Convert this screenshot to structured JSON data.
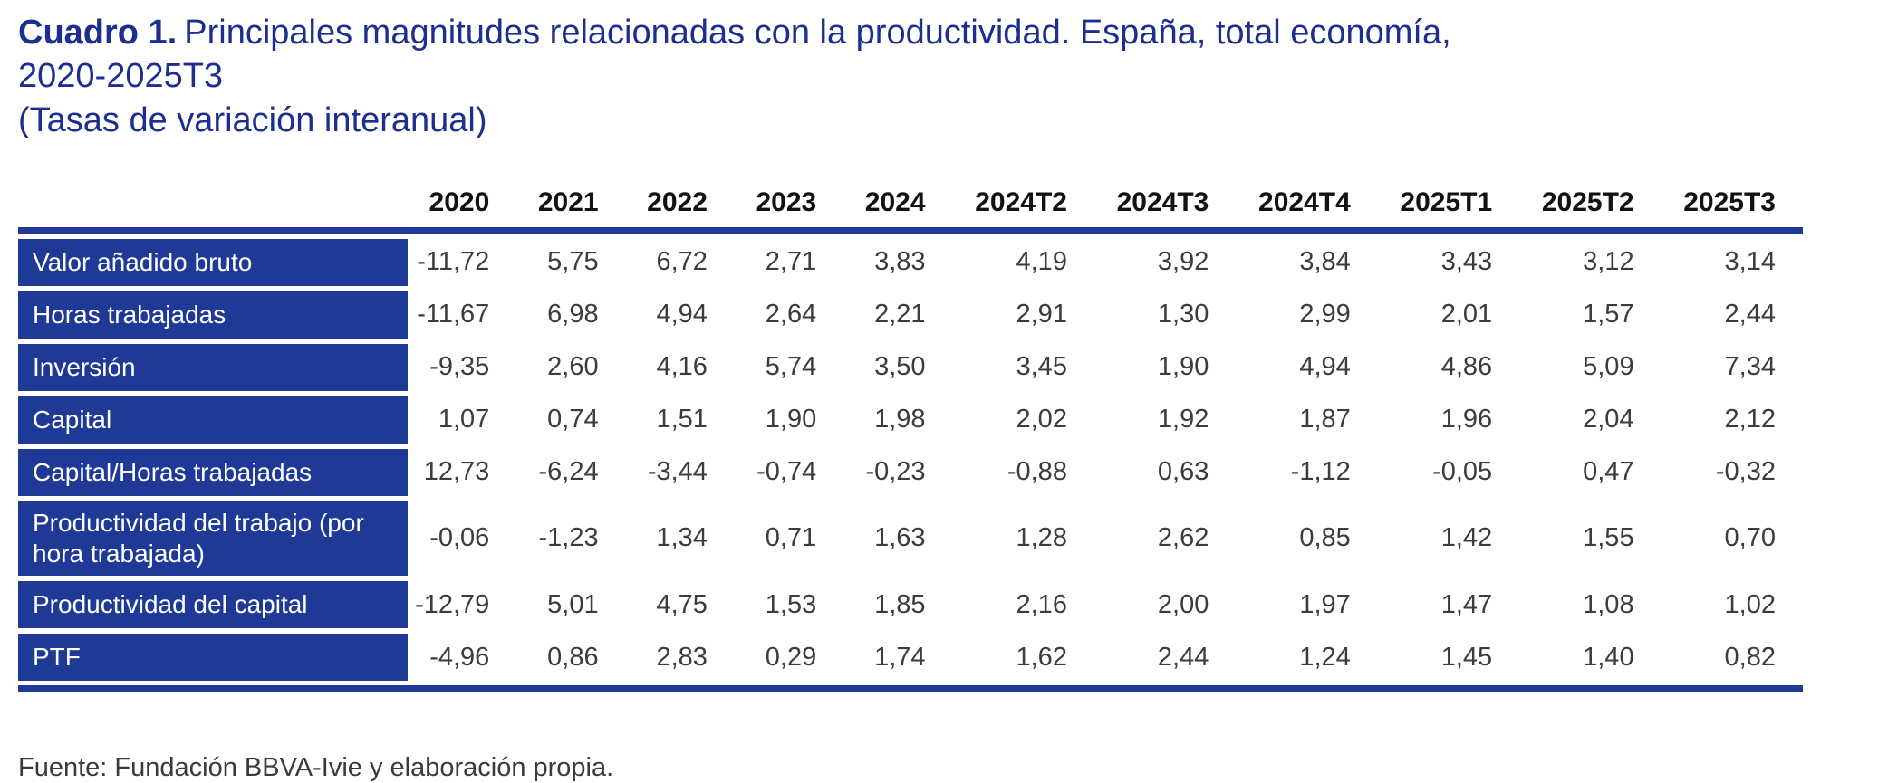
{
  "title": {
    "label": "Cuadro 1.",
    "text_line1": "Principales magnitudes relacionadas con la productividad. España, total economía, 2020-2025T3",
    "text_line2": "(Tasas de variación interanual)"
  },
  "chart_data": {
    "type": "table",
    "title": "Cuadro 1. Principales magnitudes relacionadas con la productividad. España, total economía, 2020-2025T3 (Tasas de variación interanual)",
    "columns": [
      "2020",
      "2021",
      "2022",
      "2023",
      "2024",
      "2024T2",
      "2024T3",
      "2024T4",
      "2025T1",
      "2025T2",
      "2025T3"
    ],
    "rows": [
      {
        "label": "Valor añadido bruto",
        "values": [
          "-11,72",
          "5,75",
          "6,72",
          "2,71",
          "3,83",
          "4,19",
          "3,92",
          "3,84",
          "3,43",
          "3,12",
          "3,14"
        ]
      },
      {
        "label": "Horas trabajadas",
        "values": [
          "-11,67",
          "6,98",
          "4,94",
          "2,64",
          "2,21",
          "2,91",
          "1,30",
          "2,99",
          "2,01",
          "1,57",
          "2,44"
        ]
      },
      {
        "label": "Inversión",
        "values": [
          "-9,35",
          "2,60",
          "4,16",
          "5,74",
          "3,50",
          "3,45",
          "1,90",
          "4,94",
          "4,86",
          "5,09",
          "7,34"
        ]
      },
      {
        "label": "Capital",
        "values": [
          "1,07",
          "0,74",
          "1,51",
          "1,90",
          "1,98",
          "2,02",
          "1,92",
          "1,87",
          "1,96",
          "2,04",
          "2,12"
        ]
      },
      {
        "label": "Capital/Horas trabajadas",
        "values": [
          "12,73",
          "-6,24",
          "-3,44",
          "-0,74",
          "-0,23",
          "-0,88",
          "0,63",
          "-1,12",
          "-0,05",
          "0,47",
          "-0,32"
        ]
      },
      {
        "label": "Productividad del trabajo (por hora trabajada)",
        "values": [
          "-0,06",
          "-1,23",
          "1,34",
          "0,71",
          "1,63",
          "1,28",
          "2,62",
          "0,85",
          "1,42",
          "1,55",
          "0,70"
        ]
      },
      {
        "label": "Productividad del capital",
        "values": [
          "-12,79",
          "5,01",
          "4,75",
          "1,53",
          "1,85",
          "2,16",
          "2,00",
          "1,97",
          "1,47",
          "1,08",
          "1,02"
        ]
      },
      {
        "label": "PTF",
        "values": [
          "-4,96",
          "0,86",
          "2,83",
          "0,29",
          "1,74",
          "1,62",
          "2,44",
          "1,24",
          "1,45",
          "1,40",
          "0,82"
        ]
      }
    ]
  },
  "footer": {
    "source": "Fuente: Fundación BBVA-Ivie  y elaboración propia."
  },
  "colors": {
    "title_blue": "#1c2e90",
    "row_label_bg": "#1e3a96",
    "rule_blue": "#1e3a96",
    "value_text": "#3c3c3c",
    "header_text": "#121212"
  }
}
